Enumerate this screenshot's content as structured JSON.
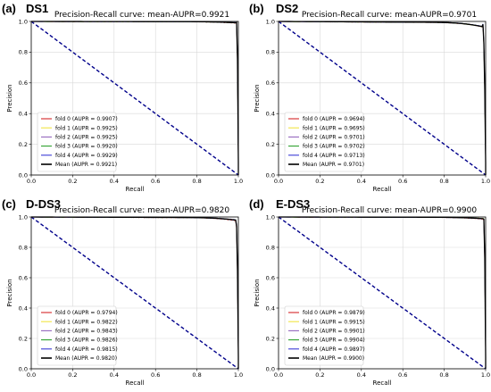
{
  "figure": {
    "panels": [
      {
        "panel_label": "(a)",
        "dataset": "DS1"
      },
      {
        "panel_label": "(b)",
        "dataset": "DS2"
      },
      {
        "panel_label": "(c)",
        "dataset": "D-DS3"
      },
      {
        "panel_label": "(d)",
        "dataset": "E-DS3"
      }
    ]
  },
  "colors": {
    "fold0": "#d62728",
    "fold1": "#f0e442",
    "fold2": "#9467bd",
    "fold3": "#2ca02c",
    "fold4": "#3b3bd6",
    "mean": "#000000",
    "diagonal": "#00008b",
    "grid": "#d9d9d9"
  },
  "chart_data": [
    {
      "type": "line",
      "title": "Precision-Recall curve: mean-AUPR=0.9921",
      "xlabel": "Recall",
      "ylabel": "Precision",
      "xlim": [
        0,
        1
      ],
      "ylim": [
        0,
        1
      ],
      "xticks": [
        "0.0",
        "0.2",
        "0.4",
        "0.6",
        "0.8",
        "1.0"
      ],
      "yticks": [
        "0.0",
        "0.2",
        "0.4",
        "0.6",
        "0.8",
        "1.0"
      ],
      "grid": true,
      "legend_position": "lower-left",
      "series": [
        {
          "name": "fold 0 (AUPR = 0.9907)",
          "color_key": "fold0",
          "aupr": 0.9907
        },
        {
          "name": "fold 1 (AUPR = 0.9925)",
          "color_key": "fold1",
          "aupr": 0.9925
        },
        {
          "name": "fold 2 (AUPR = 0.9925)",
          "color_key": "fold2",
          "aupr": 0.9925
        },
        {
          "name": "fold 3 (AUPR = 0.9920)",
          "color_key": "fold3",
          "aupr": 0.992
        },
        {
          "name": "fold 4 (AUPR = 0.9929)",
          "color_key": "fold4",
          "aupr": 0.9929
        },
        {
          "name": "Mean (AUPR = 0.9921)",
          "color_key": "mean",
          "aupr": 0.9921
        }
      ],
      "diagonal": {
        "x": [
          0,
          1
        ],
        "y": [
          1,
          0
        ]
      }
    },
    {
      "type": "line",
      "title": "Precision-Recall curve: mean-AUPR=0.9701",
      "xlabel": "Recall",
      "ylabel": "Precision",
      "xlim": [
        0,
        1
      ],
      "ylim": [
        0,
        1
      ],
      "xticks": [
        "0.0",
        "0.2",
        "0.4",
        "0.6",
        "0.8",
        "1.0"
      ],
      "yticks": [
        "0.0",
        "0.2",
        "0.4",
        "0.6",
        "0.8",
        "1.0"
      ],
      "grid": true,
      "legend_position": "lower-left",
      "series": [
        {
          "name": "fold 0 (AUPR = 0.9694)",
          "color_key": "fold0",
          "aupr": 0.9694
        },
        {
          "name": "fold 1 (AUPR = 0.9695)",
          "color_key": "fold1",
          "aupr": 0.9695
        },
        {
          "name": "fold 2 (AUPR = 0.9701)",
          "color_key": "fold2",
          "aupr": 0.9701
        },
        {
          "name": "fold 3 (AUPR = 0.9702)",
          "color_key": "fold3",
          "aupr": 0.9702
        },
        {
          "name": "fold 4 (AUPR = 0.9713)",
          "color_key": "fold4",
          "aupr": 0.9713
        },
        {
          "name": "Mean (AUPR = 0.9701)",
          "color_key": "mean",
          "aupr": 0.9701
        }
      ],
      "diagonal": {
        "x": [
          0,
          1
        ],
        "y": [
          1,
          0
        ]
      }
    },
    {
      "type": "line",
      "title": "Precision-Recall curve: mean-AUPR=0.9820",
      "xlabel": "Recall",
      "ylabel": "Precision",
      "xlim": [
        0,
        1
      ],
      "ylim": [
        0,
        1
      ],
      "xticks": [
        "0.0",
        "0.2",
        "0.4",
        "0.6",
        "0.8",
        "1.0"
      ],
      "yticks": [
        "0.0",
        "0.2",
        "0.4",
        "0.6",
        "0.8",
        "1.0"
      ],
      "grid": true,
      "legend_position": "lower-left",
      "series": [
        {
          "name": "fold 0 (AUPR = 0.9794)",
          "color_key": "fold0",
          "aupr": 0.9794
        },
        {
          "name": "fold 1 (AUPR = 0.9822)",
          "color_key": "fold1",
          "aupr": 0.9822
        },
        {
          "name": "fold 2 (AUPR = 0.9843)",
          "color_key": "fold2",
          "aupr": 0.9843
        },
        {
          "name": "fold 3 (AUPR = 0.9826)",
          "color_key": "fold3",
          "aupr": 0.9826
        },
        {
          "name": "fold 4 (AUPR = 0.9815)",
          "color_key": "fold4",
          "aupr": 0.9815
        },
        {
          "name": "Mean (AUPR = 0.9820)",
          "color_key": "mean",
          "aupr": 0.982
        }
      ],
      "diagonal": {
        "x": [
          0,
          1
        ],
        "y": [
          1,
          0
        ]
      }
    },
    {
      "type": "line",
      "title": "Precision-Recall curve: mean-AUPR=0.9900",
      "xlabel": "Recall",
      "ylabel": "Precision",
      "xlim": [
        0,
        1
      ],
      "ylim": [
        0,
        1
      ],
      "xticks": [
        "0.0",
        "0.2",
        "0.4",
        "0.6",
        "0.8",
        "1.0"
      ],
      "yticks": [
        "0.0",
        "0.2",
        "0.4",
        "0.6",
        "0.8",
        "1.0"
      ],
      "grid": true,
      "legend_position": "lower-left",
      "series": [
        {
          "name": "fold 0 (AUPR = 0.9879)",
          "color_key": "fold0",
          "aupr": 0.9879
        },
        {
          "name": "fold 1 (AUPR = 0.9915)",
          "color_key": "fold1",
          "aupr": 0.9915
        },
        {
          "name": "fold 2 (AUPR = 0.9901)",
          "color_key": "fold2",
          "aupr": 0.9901
        },
        {
          "name": "fold 3 (AUPR = 0.9904)",
          "color_key": "fold3",
          "aupr": 0.9904
        },
        {
          "name": "fold 4 (AUPR = 0.9897)",
          "color_key": "fold4",
          "aupr": 0.9897
        },
        {
          "name": "Mean (AUPR = 0.9900)",
          "color_key": "mean",
          "aupr": 0.99
        }
      ],
      "diagonal": {
        "x": [
          0,
          1
        ],
        "y": [
          1,
          0
        ]
      }
    }
  ]
}
